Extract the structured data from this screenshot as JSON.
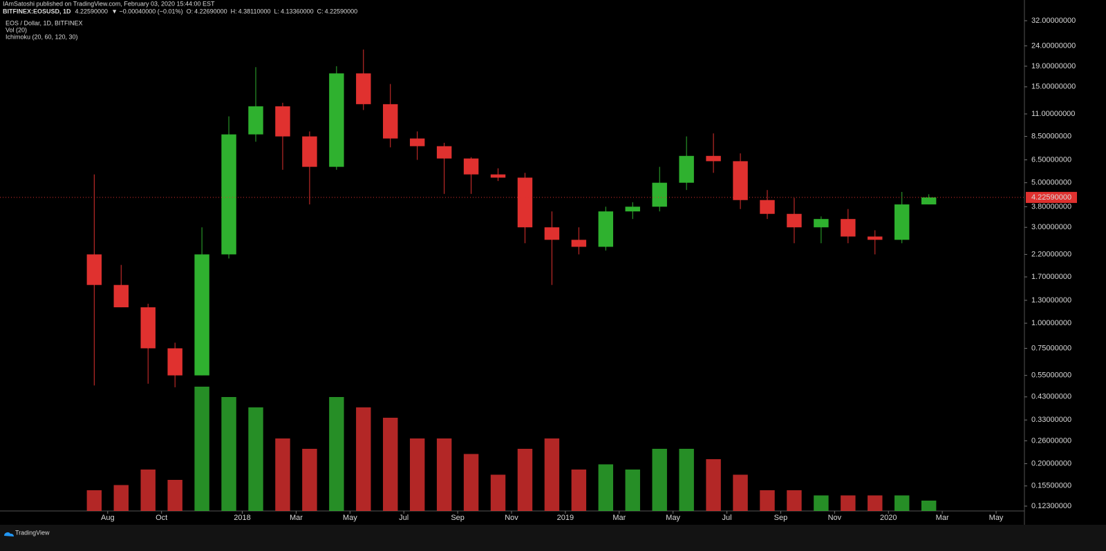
{
  "header": {
    "author_line": "IAmSatoshi published on TradingView.com, February 03, 2020 15:44:00 EST",
    "symbol": "BITFINEX:EOSUSD, 1D",
    "last": "4.22590000",
    "change": "▼ −0.00040000 (−0.01%)",
    "ohlc": [
      {
        "key": "O:",
        "value": "4.22690000"
      },
      {
        "key": "H:",
        "value": "4.38110000"
      },
      {
        "key": "L:",
        "value": "4.13360000"
      },
      {
        "key": "C:",
        "value": "4.22590000"
      }
    ]
  },
  "footer": {
    "brand": "TradingView"
  },
  "chart_data": {
    "type": "candlestick",
    "legend": [
      "EOS / Dollar, 1D, BITFINEX",
      "Vol (20)",
      "Ichimoku (20, 60, 120, 30)"
    ],
    "log_scale": true,
    "up_color": "#2fb12f",
    "down_color": "#e0312f",
    "x": [
      "2017-07",
      "2017-08",
      "2017-09",
      "2017-10",
      "2017-11",
      "2017-12",
      "2018-01",
      "2018-02",
      "2018-03",
      "2018-04",
      "2018-05",
      "2018-06",
      "2018-07",
      "2018-08",
      "2018-09",
      "2018-10",
      "2018-11",
      "2018-12",
      "2019-01",
      "2019-02",
      "2019-03",
      "2019-04",
      "2019-05",
      "2019-06",
      "2019-07",
      "2019-08",
      "2019-09",
      "2019-10",
      "2019-11",
      "2019-12",
      "2020-01",
      "2020-02"
    ],
    "open": [
      2.2,
      1.55,
      1.2,
      0.75,
      0.55,
      2.2,
      8.7,
      12.0,
      8.5,
      6.0,
      17.5,
      12.3,
      8.3,
      7.6,
      6.6,
      5.5,
      5.3,
      3.0,
      2.6,
      2.4,
      3.6,
      3.8,
      5.0,
      6.8,
      6.4,
      4.1,
      3.5,
      3.0,
      3.3,
      2.7,
      2.6,
      3.9
    ],
    "high": [
      5.5,
      1.95,
      1.25,
      0.8,
      3.0,
      10.7,
      18.8,
      12.5,
      9.0,
      19.0,
      23.0,
      15.5,
      9.0,
      7.9,
      6.7,
      5.9,
      5.6,
      3.6,
      3.0,
      3.8,
      4.0,
      6.0,
      8.5,
      8.8,
      7.0,
      4.6,
      4.2,
      3.4,
      3.7,
      2.9,
      4.5,
      4.3811
    ],
    "low": [
      0.49,
      1.2,
      0.5,
      0.48,
      0.55,
      2.1,
      8.0,
      5.8,
      3.9,
      5.8,
      11.5,
      7.5,
      6.5,
      4.4,
      4.4,
      5.1,
      2.5,
      1.55,
      2.2,
      2.3,
      3.3,
      3.6,
      4.6,
      5.6,
      3.7,
      3.3,
      2.5,
      2.5,
      2.5,
      2.2,
      2.5,
      3.9
    ],
    "close": [
      1.55,
      1.2,
      0.75,
      0.55,
      2.2,
      8.7,
      12.0,
      8.5,
      6.0,
      17.5,
      12.3,
      8.3,
      7.6,
      6.6,
      5.5,
      5.3,
      3.0,
      2.6,
      2.4,
      3.6,
      3.8,
      5.0,
      6.8,
      6.4,
      4.1,
      3.5,
      3.0,
      3.3,
      2.7,
      2.6,
      3.9,
      4.2259
    ],
    "volume": [
      20,
      25,
      40,
      30,
      120,
      110,
      100,
      70,
      60,
      110,
      100,
      90,
      70,
      70,
      55,
      35,
      60,
      70,
      40,
      45,
      40,
      60,
      60,
      50,
      35,
      20,
      20,
      15,
      15,
      15,
      15,
      10
    ],
    "last_price": {
      "value": 4.2259,
      "label": "4.22590000"
    },
    "xlim": [
      "2017-04",
      "2020-06"
    ],
    "xticks": [
      {
        "value": "2017-08",
        "label": "Aug"
      },
      {
        "value": "2017-10",
        "label": "Oct"
      },
      {
        "value": "2018-01",
        "label": "2018"
      },
      {
        "value": "2018-03",
        "label": "Mar"
      },
      {
        "value": "2018-05",
        "label": "May"
      },
      {
        "value": "2018-07",
        "label": "Jul"
      },
      {
        "value": "2018-09",
        "label": "Sep"
      },
      {
        "value": "2018-11",
        "label": "Nov"
      },
      {
        "value": "2019-01",
        "label": "2019"
      },
      {
        "value": "2019-03",
        "label": "Mar"
      },
      {
        "value": "2019-05",
        "label": "May"
      },
      {
        "value": "2019-07",
        "label": "Jul"
      },
      {
        "value": "2019-09",
        "label": "Sep"
      },
      {
        "value": "2019-11",
        "label": "Nov"
      },
      {
        "value": "2020-01",
        "label": "2020"
      },
      {
        "value": "2020-03",
        "label": "Mar"
      },
      {
        "value": "2020-05",
        "label": "May"
      }
    ],
    "ylim": [
      0.123,
      32
    ],
    "yticks": [
      {
        "value": 32,
        "label": "32.00000000"
      },
      {
        "value": 24,
        "label": "24.00000000"
      },
      {
        "value": 19,
        "label": "19.00000000"
      },
      {
        "value": 15,
        "label": "15.00000000"
      },
      {
        "value": 11,
        "label": "11.00000000"
      },
      {
        "value": 8.5,
        "label": "8.50000000"
      },
      {
        "value": 6.5,
        "label": "6.50000000"
      },
      {
        "value": 5,
        "label": "5.00000000"
      },
      {
        "value": 3.8,
        "label": "3.80000000"
      },
      {
        "value": 3,
        "label": "3.00000000"
      },
      {
        "value": 2.2,
        "label": "2.20000000"
      },
      {
        "value": 1.7,
        "label": "1.70000000"
      },
      {
        "value": 1.3,
        "label": "1.30000000"
      },
      {
        "value": 1,
        "label": "1.00000000"
      },
      {
        "value": 0.75,
        "label": "0.75000000"
      },
      {
        "value": 0.55,
        "label": "0.55000000"
      },
      {
        "value": 0.43,
        "label": "0.43000000"
      },
      {
        "value": 0.33,
        "label": "0.33000000"
      },
      {
        "value": 0.26,
        "label": "0.26000000"
      },
      {
        "value": 0.2,
        "label": "0.20000000"
      },
      {
        "value": 0.155,
        "label": "0.15500000"
      },
      {
        "value": 0.123,
        "label": "0.12300000"
      }
    ]
  }
}
